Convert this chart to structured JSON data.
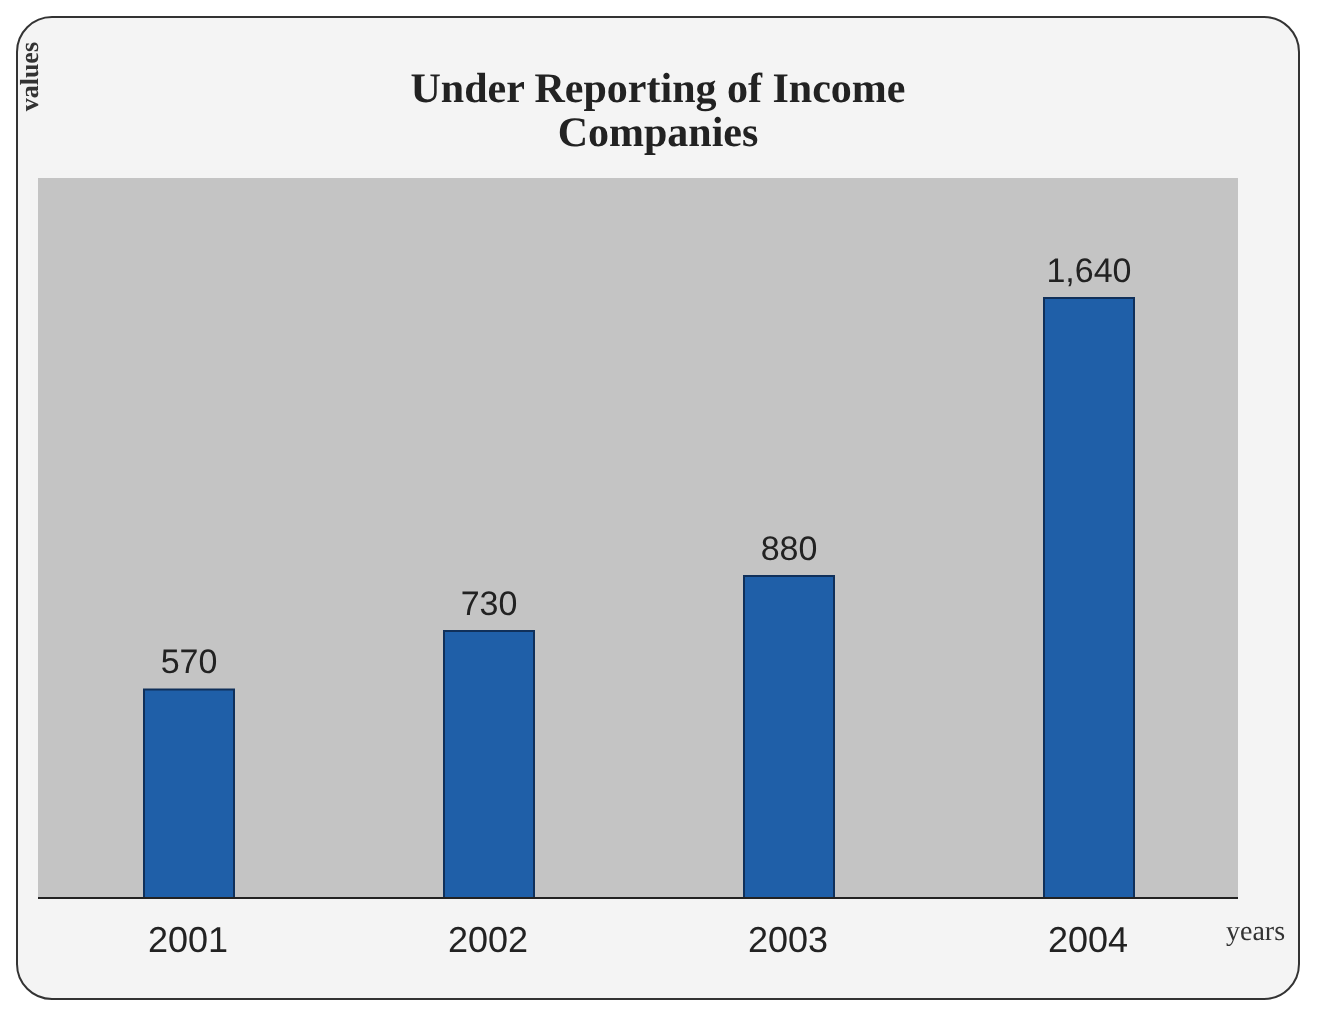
{
  "chart_data": {
    "type": "bar",
    "title": "Under Reporting of Income\nCompanies",
    "xlabel": "years",
    "annotations": [
      "values"
    ],
    "categories": [
      "2001",
      "2002",
      "2003",
      "2004"
    ],
    "values": [
      570,
      730,
      880,
      1640
    ],
    "color": "#1f5fa8",
    "value_labels": [
      "570",
      "730",
      "880",
      "1,640"
    ]
  }
}
